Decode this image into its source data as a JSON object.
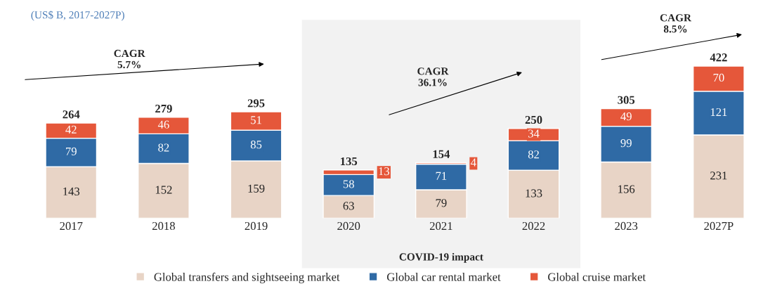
{
  "chart_data": {
    "type": "bar",
    "stacked": true,
    "title": "(US$ B, 2017-2027P)",
    "categories": [
      "2017",
      "2018",
      "2019",
      "2020",
      "2021",
      "2022",
      "2023",
      "2027P"
    ],
    "series": [
      {
        "name": "Global transfers and sightseeing market",
        "color": "#e8d4c6",
        "values": [
          143,
          152,
          159,
          63,
          79,
          133,
          156,
          231
        ]
      },
      {
        "name": "Global car rental market",
        "color": "#2f6aa5",
        "values": [
          79,
          82,
          85,
          58,
          71,
          82,
          99,
          121
        ]
      },
      {
        "name": "Global cruise market",
        "color": "#e5573a",
        "values": [
          42,
          46,
          51,
          13,
          4,
          34,
          49,
          70
        ]
      }
    ],
    "data_labels": true,
    "totals": [
      "264",
      "279",
      "295",
      "135",
      "154",
      "250",
      "305",
      "422"
    ],
    "bands": [
      {
        "axis": "x",
        "from": "2020",
        "to": "2022",
        "label": "COVID-19 impact",
        "color": "#f2f2f2"
      }
    ],
    "annotations": [
      "CAGR\n5.7%",
      "CAGR\n36.1%",
      "CAGR\n8.5%"
    ],
    "legend": "bottom",
    "grid": false
  }
}
